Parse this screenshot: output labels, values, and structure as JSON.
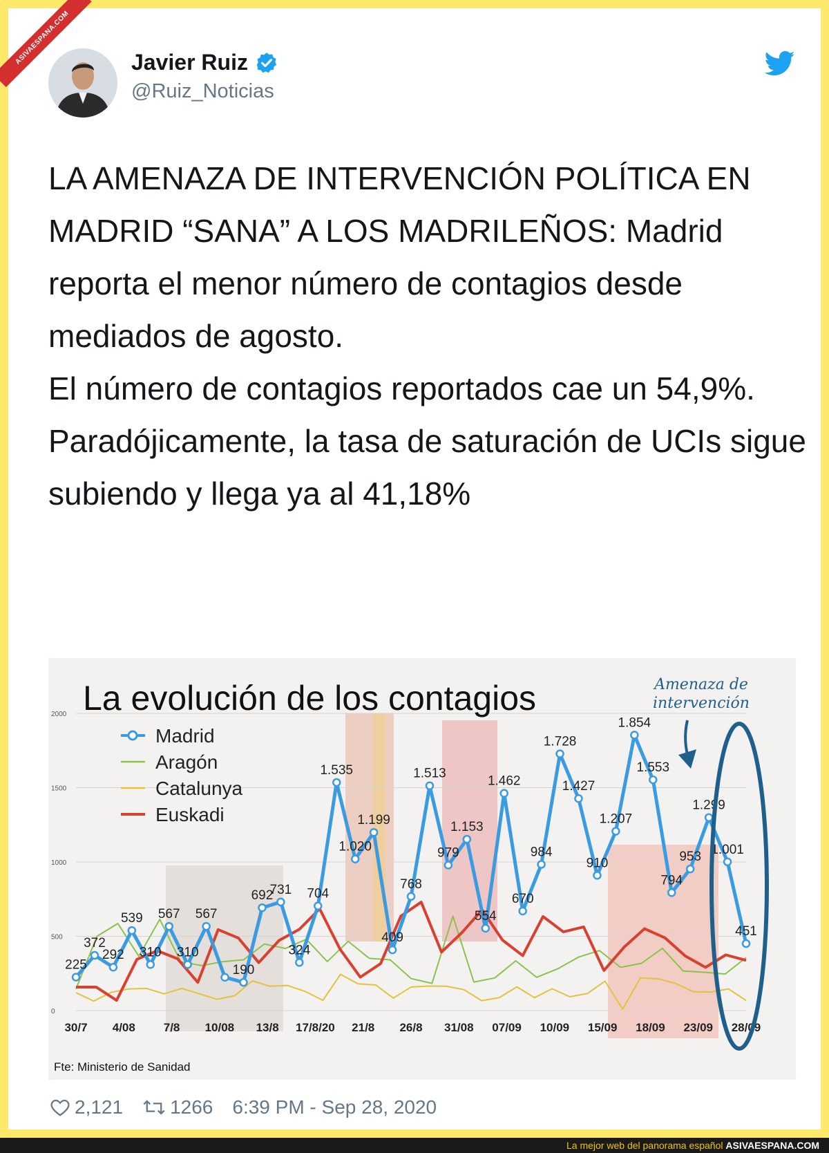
{
  "watermark": {
    "ribbon_text": "ASIVAESPANA.COM"
  },
  "tweet": {
    "author_name": "Javier Ruiz",
    "author_handle": "@Ruiz_Noticias",
    "paragraph1": "LA AMENAZA DE INTERVENCIÓN POLÍTICA EN MADRID “SANA” A LOS MADRILEÑOS: Madrid reporta el menor número de contagios desde mediados de agosto.",
    "paragraph2": "El número de contagios reportados cae un 54,9%. Paradójicamente, la tasa de saturación de UCIs sigue subiendo y llega ya al 41,18%",
    "likes": "2,121",
    "retweets": "1266",
    "timestamp": "6:39 PM - Sep 28, 2020"
  },
  "icons": {
    "verified": "verified-badge-icon",
    "bird": "twitter-bird-icon",
    "like": "heart-icon",
    "retweet": "retweet-icon"
  },
  "colors": {
    "madrid": "#3b9be0",
    "aragon": "#8bc34a",
    "catalunya": "#e3c23c",
    "euskadi": "#d8412f",
    "twitter_blue": "#1da1f2",
    "frame": "#ffe86a"
  },
  "bottom_bar": {
    "tagline": "La mejor web del panorama español",
    "site": "ASIVAESPANA.COM"
  },
  "chart_data": {
    "type": "line",
    "title": "La evolución de los contagios",
    "annotation": [
      "Amenaza de",
      "intervención"
    ],
    "source": "Fte: Ministerio de Sanidad",
    "ylim": [
      0,
      2000
    ],
    "yticks": [
      "0",
      "500",
      "1000",
      "1500",
      "2000"
    ],
    "xtick_labels": [
      "30/7",
      "4/08",
      "7/8",
      "10/08",
      "13/8",
      "17/8/20",
      "21/8",
      "26/8",
      "31/08",
      "07/09",
      "10/09",
      "15/09",
      "18/09",
      "23/09",
      "28/09"
    ],
    "series": [
      {
        "name": "Madrid",
        "values": [
          225,
          372,
          292,
          539,
          310,
          567,
          310,
          567,
          224,
          190,
          692,
          731,
          324,
          704,
          1535,
          1020,
          1199,
          409,
          768,
          1513,
          979,
          1153,
          554,
          1462,
          670,
          984,
          1728,
          1427,
          910,
          1207,
          1854,
          1553,
          794,
          953,
          1299,
          1001,
          451
        ],
        "labels": [
          "225",
          "372",
          "292",
          "539",
          "310",
          "567",
          "310",
          "567",
          "",
          "190",
          "692",
          "731",
          "324",
          "704",
          "1.535",
          "1.020",
          "1.199",
          "409",
          "768",
          "1.513",
          "979",
          "1.153",
          "554",
          "1.462",
          "670",
          "984",
          "1.728",
          "1.427",
          "910",
          "1.207",
          "1.854",
          "1.553",
          "794",
          "953",
          "1.299",
          "1.001",
          "451"
        ]
      },
      {
        "name": "Aragón",
        "values": [
          145,
          500,
          586,
          366,
          614,
          329,
          303,
          329,
          342,
          448,
          418,
          480,
          330,
          466,
          352,
          342,
          216,
          183,
          636,
          192,
          220,
          335,
          224,
          281,
          360,
          404,
          291,
          318,
          419,
          266,
          258,
          246,
          357
        ]
      },
      {
        "name": "Catalunya",
        "values": [
          121,
          64,
          123,
          146,
          149,
          113,
          149,
          113,
          76,
          100,
          200,
          164,
          169,
          129,
          69,
          244,
          180,
          172,
          84,
          159,
          165,
          164,
          141,
          67,
          87,
          160,
          87,
          147,
          93,
          115,
          198,
          10,
          220,
          214,
          183,
          127,
          125,
          146,
          68
        ]
      },
      {
        "name": "Euskadi",
        "values": [
          158,
          158,
          69,
          345,
          403,
          349,
          190,
          545,
          488,
          323,
          472,
          547,
          685,
          414,
          225,
          316,
          636,
          730,
          394,
          524,
          678,
          475,
          370,
          633,
          530,
          563,
          270,
          428,
          551,
          490,
          368,
          291,
          375,
          338
        ]
      }
    ]
  }
}
